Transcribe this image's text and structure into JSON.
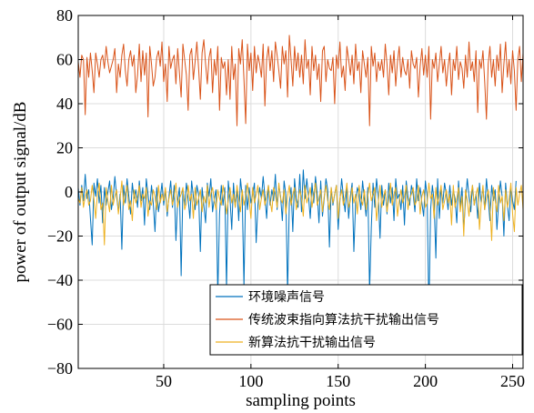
{
  "chart_data": {
    "type": "line",
    "title": "",
    "xlabel": "sampling points",
    "ylabel": "power of output signal/dB",
    "xlim": [
      1,
      256
    ],
    "ylim": [
      -80,
      80
    ],
    "xticks": [
      50,
      100,
      150,
      200,
      250
    ],
    "yticks": [
      -80,
      -60,
      -40,
      -20,
      0,
      20,
      40,
      60,
      80
    ],
    "grid": true,
    "legend_position": "bottom-right",
    "series": [
      {
        "name": "环境噪声信号",
        "color": "#0072BD",
        "x_start": 1,
        "values": [
          2,
          -6,
          3,
          -4,
          8,
          -3,
          1,
          -12,
          -24,
          4,
          -2,
          6,
          -5,
          3,
          -14,
          2,
          -6,
          0,
          5,
          -8,
          -3,
          7,
          -2,
          -9,
          -1,
          -26,
          3,
          -5,
          6,
          -2,
          -10,
          4,
          -3,
          1,
          -7,
          5,
          -4,
          2,
          -15,
          6,
          -1,
          -8,
          3,
          -5,
          -18,
          2,
          -9,
          -3,
          4,
          -6,
          1,
          -11,
          -2,
          5,
          -7,
          3,
          -22,
          -4,
          2,
          -38,
          1,
          -6,
          4,
          -3,
          -12,
          5,
          -2,
          -8,
          3,
          -1,
          -27,
          2,
          -6,
          -14,
          4,
          -2,
          6,
          -9,
          -3,
          1,
          -47,
          -10,
          3,
          -6,
          2,
          -44,
          5,
          -3,
          -17,
          4,
          -7,
          1,
          -13,
          6,
          -2,
          -43,
          3,
          -8,
          2,
          -5,
          -1,
          4,
          -23,
          -6,
          2,
          -3,
          7,
          -2,
          -12,
          3,
          -6,
          1,
          -4,
          8,
          -8,
          3,
          -2,
          -13,
          5,
          -1,
          -46,
          -5,
          2,
          -18,
          6,
          -3,
          -7,
          8,
          -9,
          10,
          -3,
          6,
          -2,
          -12,
          4,
          -5,
          7,
          -1,
          -14,
          5,
          -11,
          -3,
          6,
          1,
          -25,
          2,
          -6,
          -1,
          3,
          -17,
          -4,
          6,
          -2,
          -9,
          3,
          -12,
          -2,
          4,
          -27,
          -5,
          2,
          -1,
          -8,
          5,
          -3,
          -11,
          2,
          -45,
          -16,
          4,
          -7,
          6,
          -2,
          -21,
          3,
          -6,
          1,
          -10,
          4,
          -5,
          2,
          -13,
          6,
          -3,
          -1,
          -8,
          3,
          -15,
          5,
          -2,
          -6,
          3,
          -1,
          -9,
          6,
          -4,
          2,
          -5,
          -11,
          5,
          -2,
          -55,
          -8,
          3,
          -4,
          -30,
          6,
          -12,
          2,
          -5,
          4,
          -1,
          -8,
          3,
          -6,
          1,
          -3,
          -14,
          5,
          -7,
          2,
          -17,
          -4,
          6,
          -2,
          -9,
          3,
          -6,
          -1,
          -12,
          4,
          -5,
          2,
          -8,
          6,
          -3,
          -13,
          3,
          -4,
          1,
          -17,
          -5,
          5,
          -2,
          -20,
          4,
          -6,
          -13,
          2,
          -4,
          -8,
          5
        ]
      },
      {
        "name": "传统波束指向算法抗干扰输出信号",
        "color": "#D95319",
        "x_start": 1,
        "values": [
          59,
          52,
          62,
          60,
          35,
          61,
          52,
          63,
          55,
          45,
          63,
          58,
          52,
          60,
          62,
          56,
          66,
          59,
          54,
          57,
          60,
          65,
          45,
          58,
          52,
          62,
          67,
          55,
          48,
          60,
          64,
          57,
          62,
          45,
          53,
          67,
          50,
          64,
          53,
          63,
          34,
          66,
          58,
          48,
          52,
          61,
          64,
          57,
          68,
          50,
          58,
          41,
          66,
          56,
          60,
          62,
          49,
          65,
          54,
          43,
          67,
          60,
          53,
          37,
          62,
          65,
          51,
          59,
          68,
          56,
          42,
          63,
          69,
          58,
          49,
          61,
          65,
          45,
          60,
          53,
          66,
          37,
          61,
          56,
          59,
          44,
          60,
          42,
          66,
          51,
          58,
          30,
          65,
          58,
          69,
          51,
          31,
          67,
          55,
          63,
          46,
          66,
          54,
          62,
          58,
          52,
          67,
          39,
          60,
          66,
          55,
          64,
          50,
          68,
          62,
          55,
          47,
          66,
          58,
          64,
          43,
          71,
          60,
          48,
          66,
          55,
          63,
          52,
          62,
          49,
          69,
          56,
          60,
          44,
          66,
          55,
          62,
          51,
          58,
          41,
          64,
          66,
          50,
          60,
          56,
          55,
          61,
          40,
          62,
          56,
          68,
          52,
          57,
          46,
          66,
          60,
          53,
          62,
          49,
          67,
          55,
          59,
          45,
          64,
          58,
          52,
          61,
          30,
          66,
          57,
          63,
          50,
          59,
          55,
          60,
          52,
          67,
          58,
          44,
          62,
          54,
          64,
          48,
          59,
          66,
          52,
          61,
          55,
          53,
          60,
          47,
          64,
          58,
          56,
          61,
          43,
          57,
          65,
          53,
          62,
          52,
          66,
          33,
          60,
          56,
          63,
          50,
          58,
          66,
          54,
          60,
          48,
          57,
          63,
          44,
          60,
          55,
          66,
          51,
          59,
          56,
          47,
          62,
          52,
          68,
          55,
          59,
          50,
          64,
          36,
          60,
          56,
          64,
          50,
          33,
          58,
          66,
          52,
          60,
          48,
          62,
          55,
          67,
          45,
          58,
          68,
          52,
          60,
          49,
          64,
          55,
          37,
          60,
          66,
          50,
          63
        ]
      },
      {
        "name": "新算法抗干扰输出信号",
        "color": "#EDB120",
        "x_start": 1,
        "values": [
          -3,
          -5,
          2,
          -7,
          -2,
          1,
          -6,
          -4,
          3,
          -3,
          -12,
          -1,
          4,
          -8,
          -5,
          -24,
          2,
          -4,
          -9,
          3,
          -6,
          -2,
          1,
          -10,
          -3,
          5,
          -6,
          -1,
          3,
          -8,
          -4,
          -13,
          1,
          -5,
          -2,
          3,
          -7,
          -1,
          -3,
          2,
          -11,
          -4,
          -6,
          1,
          -2,
          -8,
          3,
          -5,
          -1,
          -4,
          2,
          -9,
          -3,
          1,
          -6,
          -2,
          4,
          -7,
          -3,
          -1,
          2,
          -8,
          -5,
          3,
          -4,
          -1,
          -12,
          2,
          -6,
          -3,
          1,
          -9,
          -2,
          -5,
          3,
          -7,
          -1,
          2,
          -4,
          -8,
          1,
          -3,
          -6,
          3,
          -2,
          -10,
          -4,
          2,
          -5,
          -1,
          -7,
          3,
          -3,
          -9,
          1,
          -6,
          -2,
          4,
          -4,
          -12,
          2,
          -5,
          -1,
          3,
          -8,
          -3,
          1,
          -6,
          -2,
          3,
          -4,
          -9,
          2,
          -1,
          -7,
          4,
          -3,
          -5,
          1,
          -10,
          -2,
          3,
          -6,
          -1,
          2,
          -8,
          -4,
          1,
          -3,
          -11,
          3,
          -5,
          -2,
          2,
          -7,
          -1,
          4,
          -6,
          -3,
          1,
          -9,
          -2,
          3,
          -4,
          -8,
          2,
          -5,
          -1,
          3,
          -12,
          -3,
          1,
          -6,
          -2,
          4,
          -7,
          -4,
          2,
          -5,
          -1,
          -10,
          3,
          -3,
          -6,
          1,
          -8,
          -2,
          4,
          -4,
          -1,
          2,
          -13,
          -5,
          3,
          -7,
          -2,
          1,
          -9,
          -3,
          4,
          -6,
          -1,
          2,
          -11,
          -4,
          1,
          -5,
          -2,
          3,
          -8,
          -3,
          -1,
          2,
          -6,
          -4,
          3,
          -10,
          -2,
          1,
          -7,
          -5,
          4,
          -3,
          -1,
          -12,
          2,
          -6,
          -2,
          3,
          -8,
          -4,
          1,
          -5,
          -1,
          -15,
          3,
          -7,
          -3,
          2,
          -9,
          -2,
          -20,
          1,
          -4,
          -11,
          -2,
          3,
          -6,
          -1,
          2,
          -17,
          -5,
          3,
          -8,
          -3,
          1,
          -6,
          -22,
          2,
          -4,
          -9,
          3,
          -5,
          -2,
          -13,
          1,
          -7,
          -3,
          4,
          -10,
          -18,
          2,
          -6,
          -1,
          3,
          -8,
          -5,
          -16,
          2,
          -4
        ]
      }
    ]
  }
}
